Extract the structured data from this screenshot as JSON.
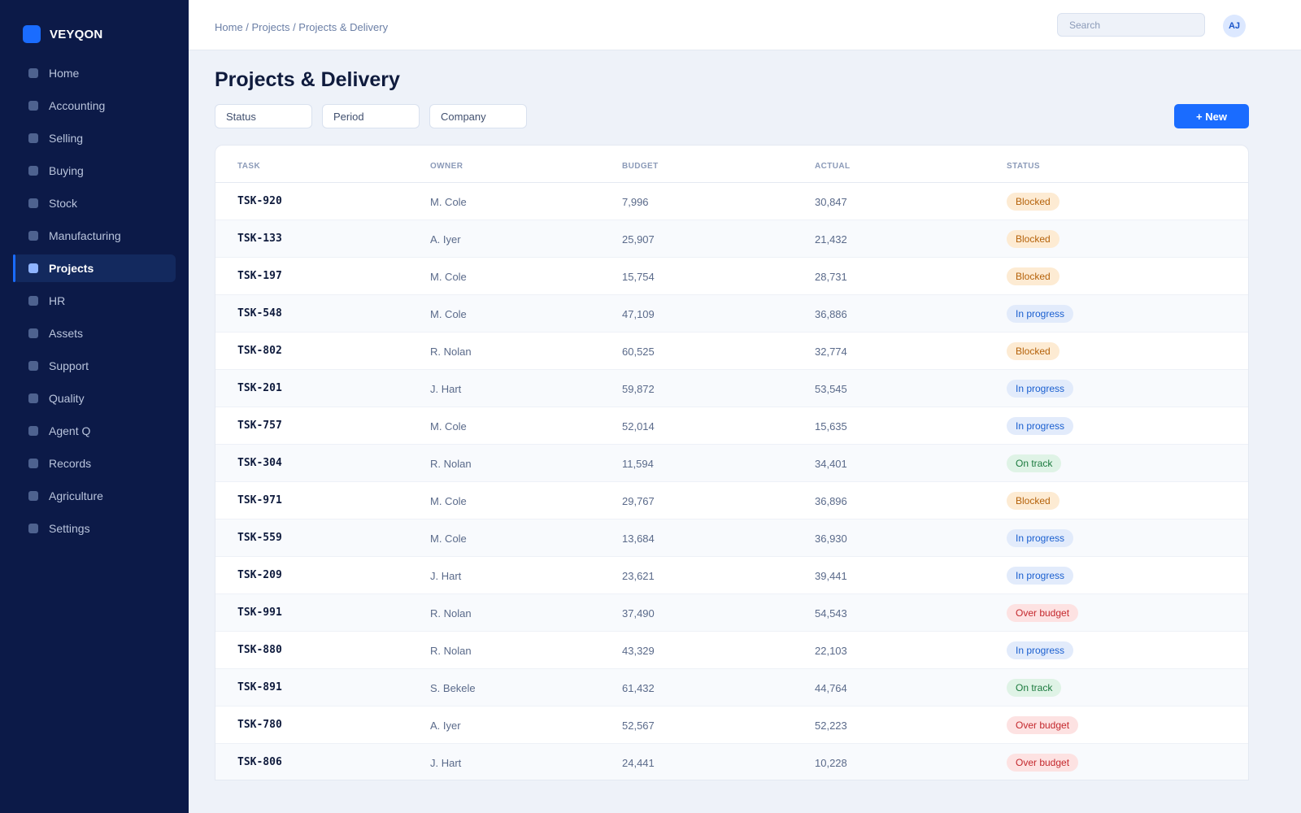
{
  "brand": {
    "name": "VEYQON"
  },
  "sidebar": {
    "items": [
      {
        "label": "Home",
        "active": false
      },
      {
        "label": "Accounting",
        "active": false
      },
      {
        "label": "Selling",
        "active": false
      },
      {
        "label": "Buying",
        "active": false
      },
      {
        "label": "Stock",
        "active": false
      },
      {
        "label": "Manufacturing",
        "active": false
      },
      {
        "label": "Projects",
        "active": true
      },
      {
        "label": "HR",
        "active": false
      },
      {
        "label": "Assets",
        "active": false
      },
      {
        "label": "Support",
        "active": false
      },
      {
        "label": "Quality",
        "active": false
      },
      {
        "label": "Agent Q",
        "active": false
      },
      {
        "label": "Records",
        "active": false
      },
      {
        "label": "Agriculture",
        "active": false
      },
      {
        "label": "Settings",
        "active": false
      }
    ]
  },
  "header": {
    "breadcrumb": "Home / Projects / Projects & Delivery",
    "search_placeholder": "Search",
    "avatar_initials": "AJ"
  },
  "main": {
    "title": "Projects & Delivery",
    "filters": [
      "Status",
      "Period",
      "Company"
    ],
    "new_button": "+ New"
  },
  "table": {
    "columns": [
      "TASK",
      "OWNER",
      "BUDGET",
      "ACTUAL",
      "STATUS"
    ],
    "rows": [
      {
        "task": "TSK-920",
        "owner": "M. Cole",
        "budget": "7,996",
        "actual": "30,847",
        "status": "Blocked"
      },
      {
        "task": "TSK-133",
        "owner": "A. Iyer",
        "budget": "25,907",
        "actual": "21,432",
        "status": "Blocked"
      },
      {
        "task": "TSK-197",
        "owner": "M. Cole",
        "budget": "15,754",
        "actual": "28,731",
        "status": "Blocked"
      },
      {
        "task": "TSK-548",
        "owner": "M. Cole",
        "budget": "47,109",
        "actual": "36,886",
        "status": "In progress"
      },
      {
        "task": "TSK-802",
        "owner": "R. Nolan",
        "budget": "60,525",
        "actual": "32,774",
        "status": "Blocked"
      },
      {
        "task": "TSK-201",
        "owner": "J. Hart",
        "budget": "59,872",
        "actual": "53,545",
        "status": "In progress"
      },
      {
        "task": "TSK-757",
        "owner": "M. Cole",
        "budget": "52,014",
        "actual": "15,635",
        "status": "In progress"
      },
      {
        "task": "TSK-304",
        "owner": "R. Nolan",
        "budget": "11,594",
        "actual": "34,401",
        "status": "On track"
      },
      {
        "task": "TSK-971",
        "owner": "M. Cole",
        "budget": "29,767",
        "actual": "36,896",
        "status": "Blocked"
      },
      {
        "task": "TSK-559",
        "owner": "M. Cole",
        "budget": "13,684",
        "actual": "36,930",
        "status": "In progress"
      },
      {
        "task": "TSK-209",
        "owner": "J. Hart",
        "budget": "23,621",
        "actual": "39,441",
        "status": "In progress"
      },
      {
        "task": "TSK-991",
        "owner": "R. Nolan",
        "budget": "37,490",
        "actual": "54,543",
        "status": "Over budget"
      },
      {
        "task": "TSK-880",
        "owner": "R. Nolan",
        "budget": "43,329",
        "actual": "22,103",
        "status": "In progress"
      },
      {
        "task": "TSK-891",
        "owner": "S. Bekele",
        "budget": "61,432",
        "actual": "44,764",
        "status": "On track"
      },
      {
        "task": "TSK-780",
        "owner": "A. Iyer",
        "budget": "52,567",
        "actual": "52,223",
        "status": "Over budget"
      },
      {
        "task": "TSK-806",
        "owner": "J. Hart",
        "budget": "24,441",
        "actual": "10,228",
        "status": "Over budget"
      }
    ]
  },
  "status_colors": {
    "Blocked": {
      "bg": "#fdebd3",
      "fg": "#b5620a"
    },
    "In progress": {
      "bg": "#e2ebfb",
      "fg": "#1a5fd0"
    },
    "On track": {
      "bg": "#dff3e6",
      "fg": "#1b7a3e"
    },
    "Over budget": {
      "bg": "#fde2e2",
      "fg": "#c4282d"
    }
  },
  "theme": {
    "accent": "#1a6cff",
    "sidebar_bg": "#0c1a48",
    "page_bg": "#eef2f9"
  }
}
